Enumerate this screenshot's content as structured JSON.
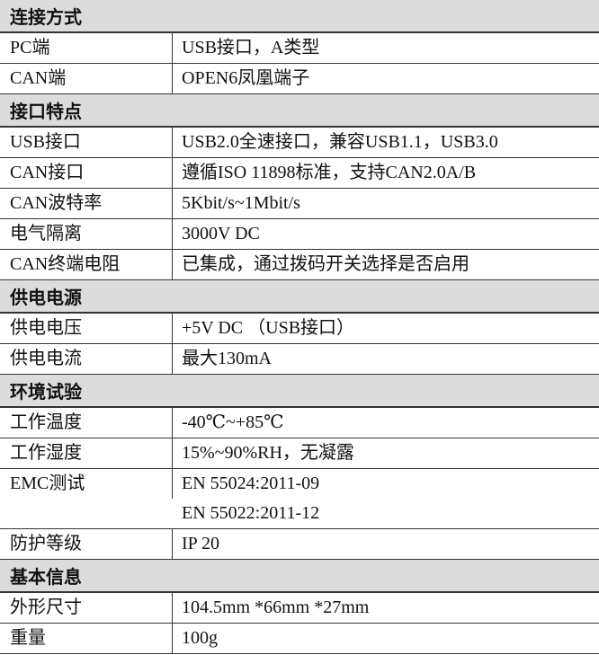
{
  "sections": [
    {
      "title": "连接方式",
      "rows": [
        {
          "key": "PC端",
          "values": [
            "USB接口，A类型"
          ]
        },
        {
          "key": "CAN端",
          "values": [
            "OPEN6凤凰端子"
          ]
        }
      ]
    },
    {
      "title": "接口特点",
      "rows": [
        {
          "key": "USB接口",
          "values": [
            "USB2.0全速接口，兼容USB1.1，USB3.0"
          ]
        },
        {
          "key": "CAN接口",
          "values": [
            "遵循ISO 11898标准，支持CAN2.0A/B"
          ]
        },
        {
          "key": "CAN波特率",
          "values": [
            "5Kbit/s~1Mbit/s"
          ]
        },
        {
          "key": "电气隔离",
          "values": [
            "3000V DC"
          ]
        },
        {
          "key": "CAN终端电阻",
          "values": [
            "已集成，通过拨码开关选择是否启用"
          ]
        }
      ]
    },
    {
      "title": "供电电源",
      "rows": [
        {
          "key": "供电电压",
          "values": [
            "+5V DC （USB接口）"
          ]
        },
        {
          "key": "供电电流",
          "values": [
            "最大130mA"
          ]
        }
      ]
    },
    {
      "title": "环境试验",
      "rows": [
        {
          "key": "工作温度",
          "values": [
            "-40℃~+85℃"
          ]
        },
        {
          "key": "工作湿度",
          "values": [
            "15%~90%RH，无凝露"
          ]
        },
        {
          "key": "EMC测试",
          "values": [
            "EN 55024:2011-09",
            "EN 55022:2011-12"
          ]
        },
        {
          "key": "防护等级",
          "values": [
            "IP 20"
          ]
        }
      ]
    },
    {
      "title": "基本信息",
      "rows": [
        {
          "key": "外形尺寸",
          "values": [
            "104.5mm *66mm *27mm"
          ]
        },
        {
          "key": "重量",
          "values": [
            "100g"
          ]
        }
      ]
    }
  ]
}
